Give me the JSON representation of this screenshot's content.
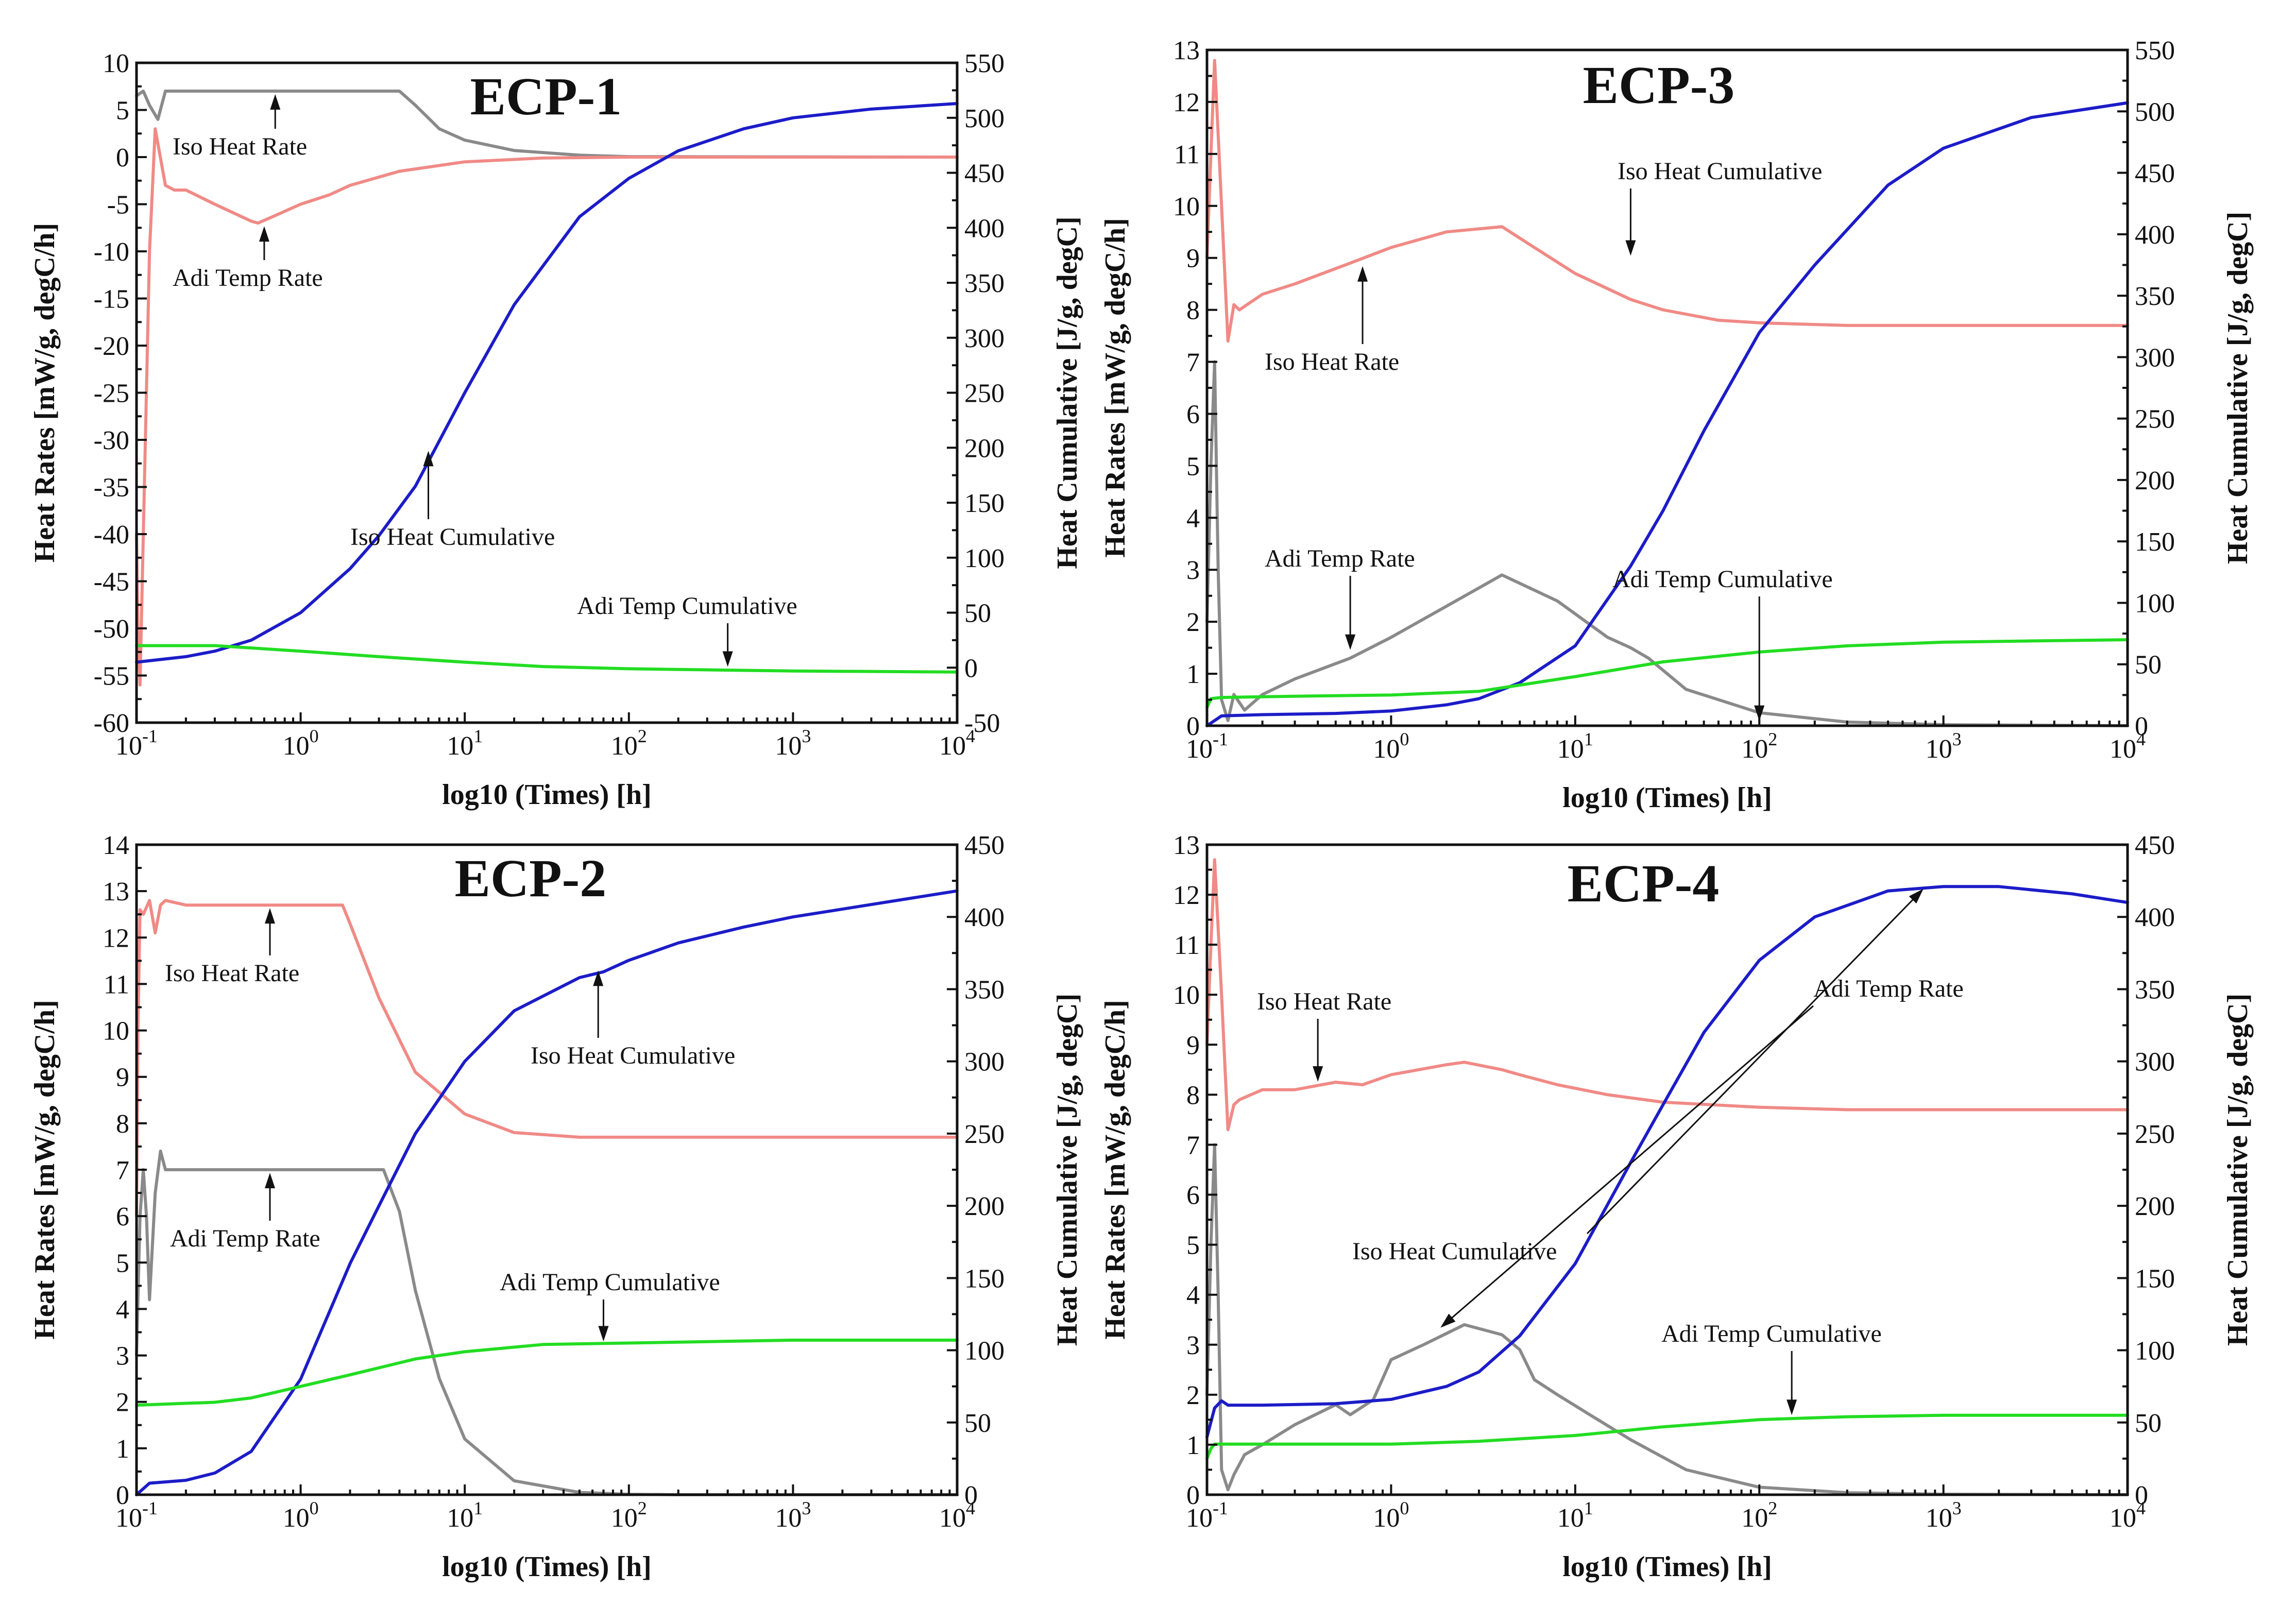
{
  "chart_data": [
    {
      "type": "line",
      "title": "ECP-1",
      "xlabel": "log10 (Times) [h]",
      "ylabel": "Heat Rates [mW/g, degC/h]",
      "y2label": "Heat Cumulative [J/g, degC]",
      "xscale": "log",
      "xlim": [
        0.1,
        10000
      ],
      "ylim": [
        -60,
        10
      ],
      "y2lim": [
        -50,
        550
      ],
      "xticks": [
        0.1,
        1,
        10,
        100,
        1000,
        10000
      ],
      "xtick_labels": [
        [
          "10",
          "-1"
        ],
        [
          "10",
          "0"
        ],
        [
          "10",
          "1"
        ],
        [
          "10",
          "2"
        ],
        [
          "10",
          "3"
        ],
        [
          "10",
          "4"
        ]
      ],
      "yticks": [
        10,
        5,
        0,
        -5,
        -10,
        -15,
        -20,
        -25,
        -30,
        -35,
        -40,
        -45,
        -50,
        -55,
        -60
      ],
      "y2ticks": [
        550,
        500,
        450,
        400,
        350,
        300,
        250,
        200,
        150,
        100,
        50,
        0,
        -50
      ],
      "series": [
        {
          "name": "Iso Heat Rate",
          "axis": "left",
          "color": "#8a8a8a",
          "x": [
            0.1,
            0.11,
            0.12,
            0.135,
            0.15,
            0.2,
            0.5,
            1,
            2,
            4,
            5,
            7,
            10,
            20,
            50,
            100,
            10000
          ],
          "y": [
            6.5,
            7,
            5.5,
            4,
            7,
            7,
            7,
            7,
            7,
            7,
            5.5,
            3,
            1.8,
            0.7,
            0.2,
            0.05,
            0
          ]
        },
        {
          "name": "Adi Temp Rate",
          "axis": "left",
          "color": "#f08a86",
          "x": [
            0.1,
            0.102,
            0.105,
            0.11,
            0.12,
            0.13,
            0.15,
            0.17,
            0.2,
            0.3,
            0.5,
            0.55,
            0.7,
            1,
            1.5,
            2,
            4,
            10,
            30,
            100,
            10000
          ],
          "y": [
            -40,
            -50,
            -56,
            -40,
            -10,
            3,
            -3,
            -3.5,
            -3.5,
            -5,
            -6.8,
            -7,
            -6.2,
            -5,
            -4,
            -3,
            -1.5,
            -0.5,
            -0.1,
            0,
            0
          ]
        },
        {
          "name": "Iso Heat Cumulative",
          "axis": "right",
          "color": "#1c1cc8",
          "x": [
            0.1,
            0.2,
            0.3,
            0.5,
            1,
            2,
            3,
            5,
            10,
            20,
            50,
            100,
            200,
            500,
            1000,
            3000,
            10000
          ],
          "y": [
            5,
            10,
            15,
            25,
            50,
            90,
            120,
            165,
            250,
            330,
            410,
            445,
            470,
            490,
            500,
            508,
            513
          ]
        },
        {
          "name": "Adi Temp Cumulative",
          "axis": "right",
          "color": "#22dd22",
          "x": [
            0.1,
            0.3,
            1,
            3,
            10,
            30,
            100,
            300,
            1000,
            10000
          ],
          "y": [
            20,
            20,
            15,
            10,
            5,
            1,
            -1,
            -2,
            -3,
            -4
          ]
        }
      ],
      "annotations": [
        {
          "label": "Iso Heat Rate",
          "target": [
            0.7,
            7
          ]
        },
        {
          "label": "Adi Temp Rate",
          "target": [
            0.6,
            -7
          ]
        },
        {
          "label": "Iso Heat Cumulative",
          "target": [
            6,
            200
          ]
        },
        {
          "label": "Adi Temp Cumulative",
          "target": [
            400,
            -2
          ]
        }
      ]
    },
    {
      "type": "line",
      "title": "ECP-3",
      "xlabel": "log10 (Times) [h]",
      "ylabel": "Heat Rates [mW/g, degC/h]",
      "y2label": "Heat Cumulative [J/g, degC]",
      "xscale": "log",
      "xlim": [
        0.1,
        10000
      ],
      "ylim": [
        0,
        13
      ],
      "y2lim": [
        0,
        550
      ],
      "xticks": [
        0.1,
        1,
        10,
        100,
        1000,
        10000
      ],
      "xtick_labels": [
        [
          "10",
          "-1"
        ],
        [
          "10",
          "0"
        ],
        [
          "10",
          "1"
        ],
        [
          "10",
          "2"
        ],
        [
          "10",
          "3"
        ],
        [
          "10",
          "4"
        ]
      ],
      "yticks": [
        13,
        12,
        11,
        10,
        9,
        8,
        7,
        6,
        5,
        4,
        3,
        2,
        1,
        0
      ],
      "y2ticks": [
        550,
        500,
        450,
        400,
        350,
        300,
        250,
        200,
        150,
        100,
        50,
        0
      ],
      "series": [
        {
          "name": "Adi Temp Rate",
          "axis": "left",
          "color": "#8a8a8a",
          "x": [
            0.1,
            0.105,
            0.11,
            0.115,
            0.12,
            0.13,
            0.14,
            0.16,
            0.2,
            0.3,
            0.6,
            1,
            2,
            4,
            8,
            15,
            20,
            25,
            40,
            100,
            300,
            1000,
            10000
          ],
          "y": [
            2,
            5,
            7,
            3,
            0.5,
            0.1,
            0.6,
            0.3,
            0.6,
            0.9,
            1.3,
            1.7,
            2.3,
            2.9,
            2.4,
            1.7,
            1.5,
            1.3,
            0.7,
            0.25,
            0.07,
            0.02,
            0
          ]
        },
        {
          "name": "Iso Heat Rate",
          "axis": "left",
          "color": "#f08a86",
          "x": [
            0.1,
            0.105,
            0.11,
            0.12,
            0.13,
            0.14,
            0.15,
            0.2,
            0.3,
            0.6,
            1,
            2,
            4,
            6,
            10,
            20,
            30,
            60,
            100,
            300,
            1000,
            10000
          ],
          "y": [
            9,
            11,
            12.8,
            10,
            7.4,
            8.1,
            8,
            8.3,
            8.5,
            8.9,
            9.2,
            9.5,
            9.6,
            9.2,
            8.7,
            8.2,
            8,
            7.8,
            7.75,
            7.7,
            7.7,
            7.7
          ]
        },
        {
          "name": "Iso Heat Cumulative",
          "axis": "right",
          "color": "#1c1cc8",
          "x": [
            0.1,
            0.12,
            0.2,
            0.5,
            1,
            2,
            3,
            5,
            10,
            20,
            30,
            50,
            100,
            200,
            500,
            1000,
            3000,
            10000
          ],
          "y": [
            0,
            8,
            9,
            10,
            12,
            17,
            22,
            35,
            65,
            130,
            175,
            240,
            320,
            375,
            440,
            470,
            495,
            507
          ]
        },
        {
          "name": "Adi Temp Cumulative",
          "axis": "right",
          "color": "#22dd22",
          "x": [
            0.1,
            0.105,
            0.12,
            0.3,
            1,
            3,
            10,
            30,
            100,
            300,
            1000,
            3000,
            10000
          ],
          "y": [
            15,
            22,
            23,
            24,
            25,
            28,
            40,
            52,
            60,
            65,
            68,
            69,
            70
          ]
        }
      ],
      "annotations": [
        {
          "label": "Iso Heat Rate",
          "target": [
            0.7,
            8.9
          ]
        },
        {
          "label": "Iso Heat Cumulative",
          "target": [
            20,
            380
          ]
        },
        {
          "label": "Adi Temp Rate",
          "target": [
            0.6,
            1.4
          ]
        },
        {
          "label": "Adi Temp Cumulative",
          "target": [
            100,
            1.4
          ]
        }
      ]
    },
    {
      "type": "line",
      "title": "ECP-2",
      "xlabel": "log10 (Times) [h]",
      "ylabel": "Heat Rates [mW/g, degC/h]",
      "y2label": "Heat Cumulative [J/g, degC]",
      "xscale": "log",
      "xlim": [
        0.1,
        10000
      ],
      "ylim": [
        0,
        14
      ],
      "y2lim": [
        0,
        450
      ],
      "xticks": [
        0.1,
        1,
        10,
        100,
        1000,
        10000
      ],
      "xtick_labels": [
        [
          "10",
          "-1"
        ],
        [
          "10",
          "0"
        ],
        [
          "10",
          "1"
        ],
        [
          "10",
          "2"
        ],
        [
          "10",
          "3"
        ],
        [
          "10",
          "4"
        ]
      ],
      "yticks": [
        14,
        13,
        12,
        11,
        10,
        9,
        8,
        7,
        6,
        5,
        4,
        3,
        2,
        1,
        0
      ],
      "y2ticks": [
        450,
        400,
        350,
        300,
        250,
        200,
        150,
        100,
        50,
        0
      ],
      "series": [
        {
          "name": "Iso Heat Rate",
          "axis": "left",
          "color": "#f08a86",
          "x": [
            0.1,
            0.102,
            0.105,
            0.11,
            0.12,
            0.13,
            0.14,
            0.15,
            0.2,
            1,
            1.8,
            2,
            3,
            5,
            10,
            20,
            50,
            100,
            10000
          ],
          "y": [
            6,
            10,
            12.6,
            12.5,
            12.8,
            12.1,
            12.7,
            12.8,
            12.7,
            12.7,
            12.7,
            12.3,
            10.7,
            9.1,
            8.2,
            7.8,
            7.7,
            7.7,
            7.7
          ]
        },
        {
          "name": "Adi Temp Rate",
          "axis": "left",
          "color": "#8a8a8a",
          "x": [
            0.1,
            0.105,
            0.11,
            0.115,
            0.12,
            0.13,
            0.14,
            0.15,
            0.2,
            0.5,
            3.2,
            4,
            5,
            7,
            10,
            20,
            50,
            100,
            200,
            10000
          ],
          "y": [
            3,
            6,
            7,
            6,
            4.2,
            6.5,
            7.4,
            7,
            7,
            7,
            7,
            6.1,
            4.4,
            2.5,
            1.2,
            0.3,
            0.05,
            0.01,
            0,
            0
          ]
        },
        {
          "name": "Iso Heat Cumulative",
          "axis": "right",
          "color": "#1c1cc8",
          "x": [
            0.1,
            0.12,
            0.2,
            0.3,
            0.5,
            1,
            2,
            3,
            5,
            10,
            20,
            50,
            70,
            100,
            200,
            500,
            1000,
            10000
          ],
          "y": [
            0,
            8,
            10,
            15,
            30,
            80,
            160,
            200,
            250,
            300,
            335,
            358,
            362,
            370,
            382,
            393,
            400,
            418
          ]
        },
        {
          "name": "Adi Temp Cumulative",
          "axis": "right",
          "color": "#22dd22",
          "x": [
            0.1,
            0.3,
            0.5,
            1,
            2,
            5,
            10,
            30,
            100,
            1000,
            10000
          ],
          "y": [
            62,
            64,
            67,
            75,
            83,
            94,
            99,
            104,
            105,
            107,
            107
          ]
        }
      ],
      "annotations": [
        {
          "label": "Iso Heat Rate",
          "target": [
            0.65,
            12.7
          ]
        },
        {
          "label": "Iso Heat Cumulative",
          "target": [
            65,
            365
          ]
        },
        {
          "label": "Adi Temp Rate",
          "target": [
            0.65,
            7
          ]
        },
        {
          "label": "Adi Temp Cumulative",
          "target": [
            70,
            104
          ]
        }
      ]
    },
    {
      "type": "line",
      "title": "ECP-4",
      "xlabel": "log10 (Times) [h]",
      "ylabel": "Heat Rates [mW/g, degC/h]",
      "y2label": "Heat Cumulative [J/g, degC]",
      "xscale": "log",
      "xlim": [
        0.1,
        10000
      ],
      "ylim": [
        0,
        13
      ],
      "y2lim": [
        0,
        450
      ],
      "xticks": [
        0.1,
        1,
        10,
        100,
        1000,
        10000
      ],
      "xtick_labels": [
        [
          "10",
          "-1"
        ],
        [
          "10",
          "0"
        ],
        [
          "10",
          "1"
        ],
        [
          "10",
          "2"
        ],
        [
          "10",
          "3"
        ],
        [
          "10",
          "4"
        ]
      ],
      "yticks": [
        13,
        12,
        11,
        10,
        9,
        8,
        7,
        6,
        5,
        4,
        3,
        2,
        1,
        0
      ],
      "y2ticks": [
        450,
        400,
        350,
        300,
        250,
        200,
        150,
        100,
        50,
        0
      ],
      "series": [
        {
          "name": "Adi Temp Rate",
          "axis": "left",
          "color": "#8a8a8a",
          "x": [
            0.1,
            0.105,
            0.11,
            0.115,
            0.12,
            0.13,
            0.14,
            0.16,
            0.2,
            0.3,
            0.5,
            0.6,
            0.8,
            1,
            1.5,
            2.5,
            4,
            5,
            6,
            8,
            12,
            20,
            40,
            100,
            300,
            1000,
            10000
          ],
          "y": [
            2,
            5,
            7,
            4,
            0.5,
            0.1,
            0.4,
            0.8,
            1,
            1.4,
            1.8,
            1.6,
            1.9,
            2.7,
            3,
            3.4,
            3.2,
            2.9,
            2.3,
            2,
            1.6,
            1.1,
            0.5,
            0.15,
            0.04,
            0.01,
            0
          ]
        },
        {
          "name": "Iso Heat Rate",
          "axis": "left",
          "color": "#f08a86",
          "x": [
            0.1,
            0.105,
            0.11,
            0.12,
            0.13,
            0.14,
            0.15,
            0.2,
            0.3,
            0.5,
            0.7,
            1,
            2,
            2.5,
            4,
            5,
            8,
            15,
            30,
            100,
            300,
            1000,
            10000
          ],
          "y": [
            9,
            11,
            12.7,
            10,
            7.3,
            7.8,
            7.9,
            8.1,
            8.1,
            8.25,
            8.2,
            8.4,
            8.6,
            8.65,
            8.5,
            8.4,
            8.2,
            8,
            7.85,
            7.75,
            7.7,
            7.7,
            7.7
          ]
        },
        {
          "name": "Iso Heat Cumulative",
          "axis": "right",
          "color": "#1c1cc8",
          "x": [
            0.1,
            0.11,
            0.12,
            0.13,
            0.2,
            0.5,
            1,
            2,
            3,
            5,
            10,
            20,
            30,
            50,
            100,
            200,
            500,
            1000,
            2000,
            5000,
            10000
          ],
          "y": [
            40,
            60,
            65,
            62,
            62,
            63,
            66,
            75,
            85,
            110,
            160,
            230,
            270,
            320,
            370,
            400,
            418,
            421,
            421,
            416,
            410
          ]
        },
        {
          "name": "Adi Temp Cumulative",
          "axis": "right",
          "color": "#22dd22",
          "x": [
            0.1,
            0.105,
            0.11,
            0.12,
            0.3,
            1,
            3,
            10,
            30,
            100,
            300,
            1000,
            3000,
            10000
          ],
          "y": [
            25,
            32,
            35,
            35,
            35,
            35,
            37,
            41,
            47,
            52,
            54,
            55,
            55,
            55
          ]
        }
      ],
      "annotations": [
        {
          "label": "Iso Heat Rate",
          "target": [
            0.4,
            8.2
          ]
        },
        {
          "label": "Adi Temp Rate",
          "target": [
            1.8,
            3.3
          ]
        },
        {
          "label": "Iso Heat Cumulative",
          "target": [
            800,
            421
          ]
        },
        {
          "label": "Adi Temp Cumulative",
          "target": [
            150,
            53
          ]
        }
      ]
    }
  ]
}
